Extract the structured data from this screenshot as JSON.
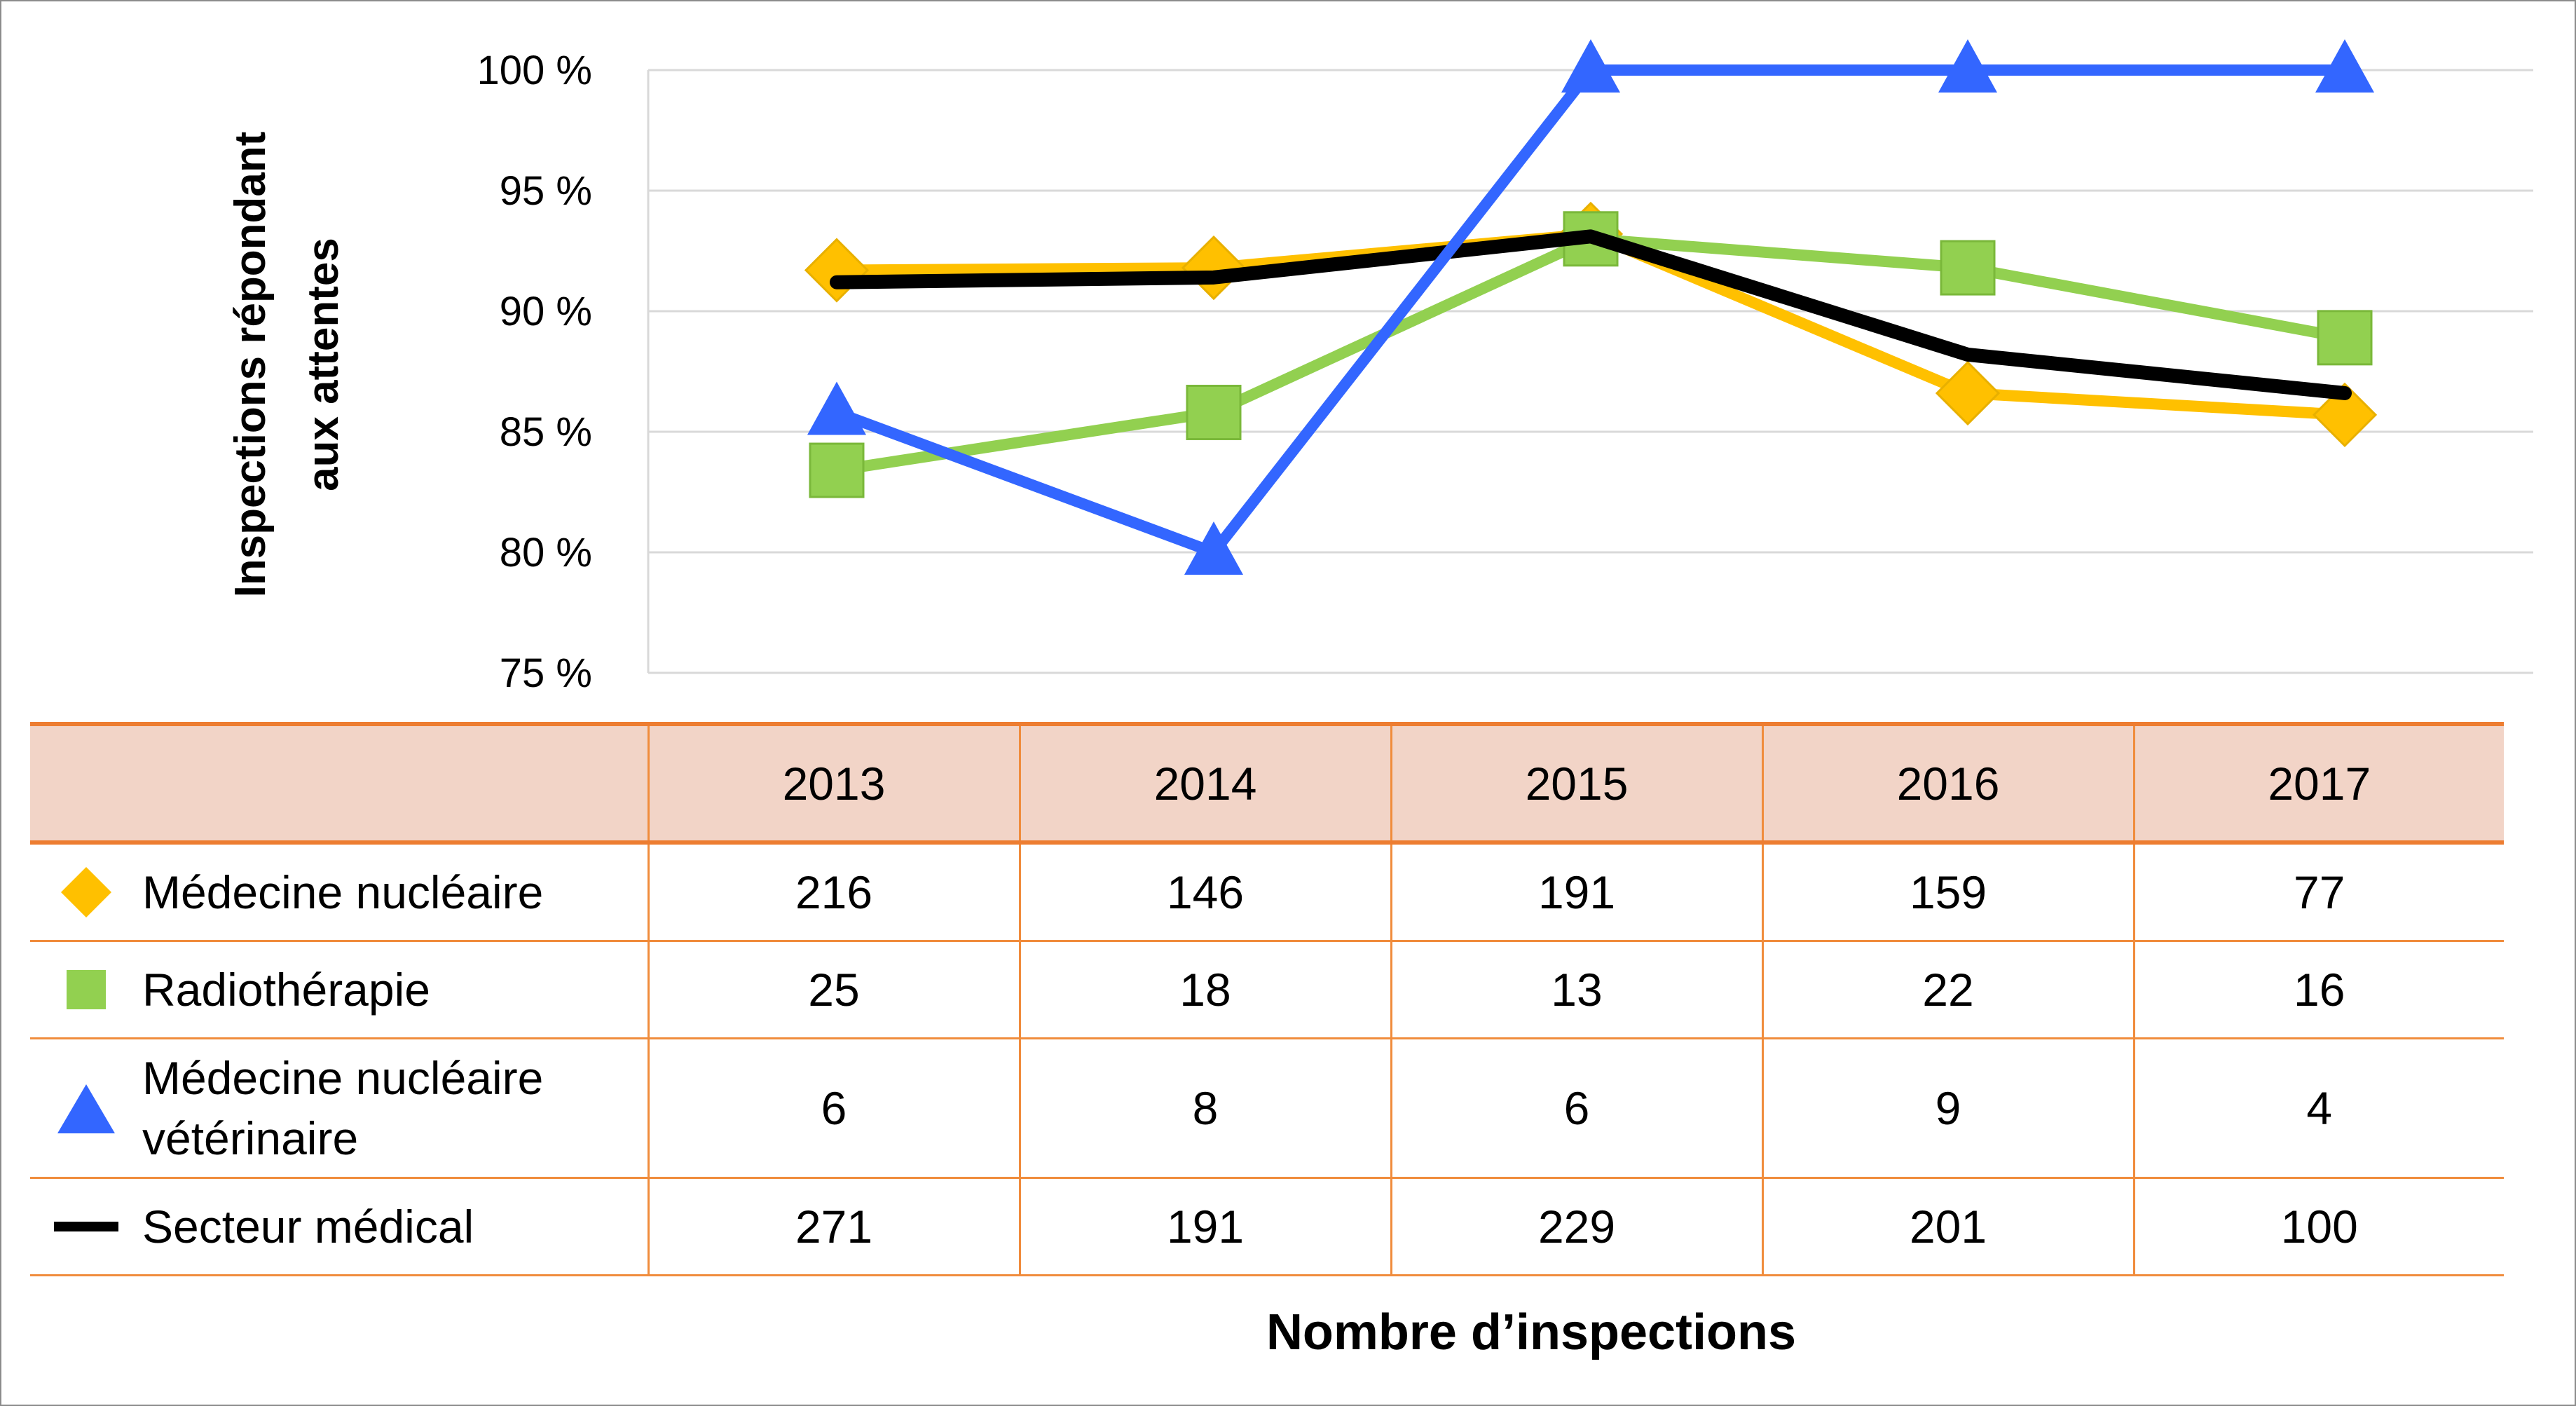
{
  "chart_data": {
    "type": "line",
    "ylabel_lines": [
      "Inspections répondant",
      "aux attentes"
    ],
    "yticks": [
      "100 %",
      "95 %",
      "90 %",
      "85 %",
      "80 %",
      "75 %"
    ],
    "ylim": [
      75,
      100
    ],
    "categories": [
      "2013",
      "2014",
      "2015",
      "2016",
      "2017"
    ],
    "series": [
      {
        "name": "Médecine nucléaire",
        "color": "#ffc000",
        "marker": "diamond",
        "values": [
          91.7,
          91.8,
          93.2,
          86.6,
          85.7
        ]
      },
      {
        "name": "Radiothérapie",
        "color": "#92d050",
        "marker": "square",
        "values": [
          83.4,
          85.8,
          93.0,
          91.8,
          88.9
        ]
      },
      {
        "name": "Médecine nucléaire vétérinaire",
        "color": "#3366ff",
        "marker": "triangle",
        "values": [
          85.8,
          80.0,
          100.0,
          100.0,
          100.0
        ]
      },
      {
        "name": "Secteur médical",
        "color": "#000000",
        "marker": "line",
        "values": [
          91.2,
          91.4,
          93.1,
          88.2,
          86.6
        ]
      }
    ],
    "grid": true,
    "legend": "in table"
  },
  "table": {
    "header": [
      "2013",
      "2014",
      "2015",
      "2016",
      "2017"
    ],
    "rows": [
      {
        "label": "Médecine nucléaire",
        "values": [
          "216",
          "146",
          "191",
          "159",
          "77"
        ]
      },
      {
        "label": "Radiothérapie",
        "values": [
          "25",
          "18",
          "13",
          "22",
          "16"
        ]
      },
      {
        "label_lines": [
          "Médecine nucléaire",
          "vétérinaire"
        ],
        "values": [
          "6",
          "8",
          "6",
          "9",
          "4"
        ]
      },
      {
        "label": "Secteur médical",
        "values": [
          "271",
          "191",
          "229",
          "201",
          "100"
        ]
      }
    ]
  },
  "footer_title": "Nombre d’inspections"
}
